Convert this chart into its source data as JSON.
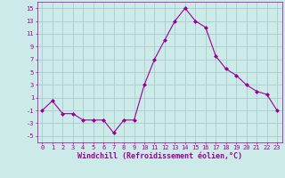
{
  "x": [
    0,
    1,
    2,
    3,
    4,
    5,
    6,
    7,
    8,
    9,
    10,
    11,
    12,
    13,
    14,
    15,
    16,
    17,
    18,
    19,
    20,
    21,
    22,
    23
  ],
  "y": [
    -1,
    0.5,
    -1.5,
    -1.5,
    -2.5,
    -2.5,
    -2.5,
    -4.5,
    -2.5,
    -2.5,
    3,
    7,
    10,
    13,
    15,
    13,
    12,
    7.5,
    5.5,
    4.5,
    3,
    2,
    1.5,
    -1
  ],
  "line_color": "#990099",
  "marker": "D",
  "marker_size": 2.0,
  "bg_color": "#cceae8",
  "grid_color": "#aacccc",
  "xlabel": "Windchill (Refroidissement éolien,°C)",
  "xlabel_color": "#990099",
  "ylim": [
    -6,
    16
  ],
  "yticks": [
    -5,
    -3,
    -1,
    1,
    3,
    5,
    7,
    9,
    11,
    13,
    15
  ],
  "xticks": [
    0,
    1,
    2,
    3,
    4,
    5,
    6,
    7,
    8,
    9,
    10,
    11,
    12,
    13,
    14,
    15,
    16,
    17,
    18,
    19,
    20,
    21,
    22,
    23
  ],
  "tick_color": "#990099",
  "tick_fontsize": 5.0,
  "xlabel_fontsize": 6.0
}
